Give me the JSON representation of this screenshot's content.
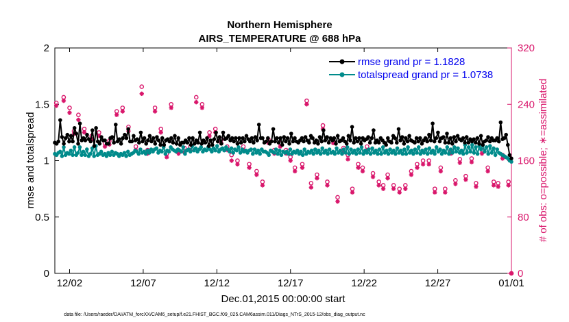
{
  "chart_data": {
    "type": "line",
    "title_line1": "Northern Hemisphere",
    "title_line2": "AIRS_TEMPERATURE @ 688 hPa",
    "xlabel": "Dec.01,2015 00:00:00 start",
    "ylabel_left": "rmse and totalspread",
    "ylabel_right": "# of obs: o=possible; ∗=assimilated",
    "xlim": [
      0,
      31
    ],
    "ylim_left": [
      0,
      2
    ],
    "ylim_right": [
      0,
      320
    ],
    "x_ticks": [
      {
        "value": 1,
        "label": "12/02"
      },
      {
        "value": 6,
        "label": "12/07"
      },
      {
        "value": 11,
        "label": "12/12"
      },
      {
        "value": 16,
        "label": "12/17"
      },
      {
        "value": 21,
        "label": "12/22"
      },
      {
        "value": 26,
        "label": "12/27"
      },
      {
        "value": 31,
        "label": "01/01"
      }
    ],
    "y_ticks_left": [
      "0",
      "0.5",
      "1",
      "1.5",
      "2"
    ],
    "y_ticks_right": [
      "0",
      "80",
      "160",
      "240",
      "320"
    ],
    "colors": {
      "rmse": "#000000",
      "spread": "#008b8b",
      "obs": "#d9166b",
      "right_axis": "#d9166b",
      "legend_text": "#0000ee"
    },
    "legend": [
      {
        "label": "rmse grand pr = 1.1828",
        "color": "#000000"
      },
      {
        "label": "totalspread grand pr = 1.0738",
        "color": "#008b8b"
      }
    ],
    "series": [
      {
        "name": "rmse",
        "axis": "left",
        "values": [
          1.16,
          1.15,
          1.17,
          1.36,
          1.21,
          1.15,
          1.2,
          1.23,
          1.17,
          1.22,
          1.17,
          1.29,
          1.24,
          1.15,
          1.33,
          1.18,
          1.2,
          1.18,
          1.23,
          1.19,
          1.17,
          1.27,
          1.13,
          1.29,
          1.17,
          1.15,
          1.21,
          1.18,
          1.18,
          1.15,
          1.15,
          1.2,
          1.21,
          1.16,
          1.32,
          1.17,
          1.19,
          1.15,
          1.2,
          1.23,
          1.2,
          1.28,
          1.17,
          1.17,
          1.22,
          1.18,
          1.19,
          1.16,
          1.25,
          1.17,
          1.2,
          1.15,
          1.18,
          1.22,
          1.17,
          1.2,
          1.15,
          1.21,
          1.18,
          1.14,
          1.2,
          1.14,
          1.18,
          1.19,
          1.17,
          1.2,
          1.16,
          1.22,
          1.15,
          1.2,
          1.14,
          1.16,
          1.16,
          1.18,
          1.16,
          1.2,
          1.14,
          1.2,
          1.15,
          1.18,
          1.16,
          1.25,
          1.15,
          1.18,
          1.16,
          1.2,
          1.13,
          1.18,
          1.14,
          1.19,
          1.25,
          1.17,
          1.21,
          1.15,
          1.25,
          1.19,
          1.2,
          1.22,
          1.18,
          1.2,
          1.17,
          1.2,
          1.15,
          1.2,
          1.16,
          1.2,
          1.17,
          1.22,
          1.19,
          1.17,
          1.2,
          1.16,
          1.21,
          1.18,
          1.32,
          1.2,
          1.2,
          1.16,
          1.17,
          1.2,
          1.15,
          1.17,
          1.28,
          1.17,
          1.2,
          1.16,
          1.2,
          1.14,
          1.21,
          1.17,
          1.2,
          1.15,
          1.24,
          1.17,
          1.2,
          1.17,
          1.16,
          1.18,
          1.2,
          1.17,
          1.21,
          1.18,
          1.16,
          1.22,
          1.2,
          1.16,
          1.18,
          1.15,
          1.21,
          1.17,
          1.27,
          1.18,
          1.21,
          1.16,
          1.2,
          1.18,
          1.2,
          1.15,
          1.22,
          1.17,
          1.18,
          1.2,
          1.17,
          1.15,
          1.22,
          1.18,
          1.3,
          1.16,
          1.2,
          1.17,
          1.2,
          1.15,
          1.2,
          1.18,
          1.19,
          1.21,
          1.16,
          1.2,
          1.27,
          1.16,
          1.18,
          1.16,
          1.2,
          1.18,
          1.16,
          1.14,
          1.2,
          1.17,
          1.16,
          1.22,
          1.2,
          1.16,
          1.28,
          1.18,
          1.21,
          1.15,
          1.2,
          1.17,
          1.22,
          1.18,
          1.17,
          1.16,
          1.2,
          1.17,
          1.2,
          1.15,
          1.18,
          1.2,
          1.17,
          1.23,
          1.18,
          1.33,
          1.17,
          1.2,
          1.25,
          1.17,
          1.2,
          1.21,
          1.16,
          1.24,
          1.16,
          1.2,
          1.15,
          1.21,
          1.17,
          1.22,
          1.19,
          1.18,
          1.2,
          1.16,
          1.21,
          1.16,
          1.19,
          1.17,
          1.19,
          1.16,
          1.2,
          1.15,
          1.22,
          1.14,
          1.17,
          1.18,
          1.21,
          1.17,
          1.2,
          1.18,
          1.18,
          1.2,
          1.17,
          1.34,
          1.19,
          1.2,
          1.23,
          1.14,
          1.05,
          1.02
        ]
      },
      {
        "name": "totalspread",
        "axis": "left",
        "values": [
          1.06,
          1.05,
          1.07,
          1.08,
          1.04,
          1.12,
          1.05,
          1.07,
          1.06,
          1.09,
          1.05,
          1.12,
          1.05,
          1.07,
          1.12,
          1.05,
          1.08,
          1.05,
          1.1,
          1.04,
          1.06,
          1.11,
          1.04,
          1.13,
          1.05,
          1.06,
          1.08,
          1.05,
          1.06,
          1.04,
          1.07,
          1.05,
          1.08,
          1.05,
          1.07,
          1.06,
          1.04,
          1.06,
          1.05,
          1.07,
          1.04,
          1.08,
          1.05,
          1.06,
          1.07,
          1.09,
          1.08,
          1.06,
          1.1,
          1.07,
          1.08,
          1.06,
          1.09,
          1.07,
          1.1,
          1.08,
          1.1,
          1.11,
          1.07,
          1.09,
          1.08,
          1.12,
          1.06,
          1.09,
          1.08,
          1.12,
          1.1,
          1.09,
          1.08,
          1.1,
          1.09,
          1.08,
          1.12,
          1.06,
          1.09,
          1.1,
          1.08,
          1.13,
          1.09,
          1.11,
          1.08,
          1.1,
          1.12,
          1.08,
          1.1,
          1.09,
          1.12,
          1.1,
          1.08,
          1.11,
          1.09,
          1.13,
          1.08,
          1.1,
          1.11,
          1.09,
          1.12,
          1.1,
          1.08,
          1.11,
          1.07,
          1.1,
          1.09,
          1.12,
          1.07,
          1.1,
          1.08,
          1.09,
          1.07,
          1.09,
          1.1,
          1.06,
          1.1,
          1.07,
          1.09,
          1.06,
          1.1,
          1.08,
          1.08,
          1.07,
          1.05,
          1.09,
          1.08,
          1.07,
          1.1,
          1.06,
          1.09,
          1.05,
          1.08,
          1.07,
          1.08,
          1.06,
          1.1,
          1.06,
          1.08,
          1.07,
          1.09,
          1.06,
          1.08,
          1.05,
          1.1,
          1.06,
          1.08,
          1.07,
          1.09,
          1.06,
          1.1,
          1.07,
          1.09,
          1.06,
          1.11,
          1.07,
          1.09,
          1.06,
          1.1,
          1.07,
          1.08,
          1.06,
          1.11,
          1.07,
          1.09,
          1.06,
          1.1,
          1.07,
          1.12,
          1.06,
          1.1,
          1.07,
          1.09,
          1.06,
          1.1,
          1.07,
          1.12,
          1.06,
          1.09,
          1.07,
          1.1,
          1.06,
          1.11,
          1.07,
          1.09,
          1.06,
          1.1,
          1.06,
          1.12,
          1.07,
          1.09,
          1.06,
          1.1,
          1.07,
          1.09,
          1.06,
          1.11,
          1.07,
          1.09,
          1.06,
          1.1,
          1.06,
          1.12,
          1.07,
          1.09,
          1.06,
          1.1,
          1.07,
          1.12,
          1.06,
          1.09,
          1.07,
          1.1,
          1.06,
          1.11,
          1.07,
          1.09,
          1.06,
          1.12,
          1.08,
          1.1,
          1.06,
          1.09,
          1.07,
          1.12,
          1.06,
          1.1,
          1.07,
          1.12,
          1.08,
          1.11,
          1.07,
          1.09,
          1.06,
          1.14,
          1.07,
          1.12,
          1.08,
          1.14,
          1.07,
          1.12,
          1.06,
          1.13,
          1.1,
          1.14,
          1.08,
          1.12,
          1.06,
          1.13,
          1.07,
          1.11,
          1.05,
          1.1,
          1.07,
          1.06,
          1.05,
          1.04,
          1.03,
          1.02,
          1.0,
          0.99
        ]
      },
      {
        "name": "obs_possible",
        "axis": "right",
        "marker": "o",
        "values": [
          [
            0.1,
            242
          ],
          [
            0.6,
            250
          ],
          [
            1.0,
            235
          ],
          [
            1.3,
            202
          ],
          [
            1.6,
            225
          ],
          [
            2.0,
            205
          ],
          [
            2.5,
            195
          ],
          [
            3.0,
            200
          ],
          [
            3.4,
            185
          ],
          [
            3.7,
            188
          ],
          [
            4.2,
            230
          ],
          [
            4.6,
            235
          ],
          [
            5.0,
            208
          ],
          [
            5.5,
            180
          ],
          [
            5.9,
            265
          ],
          [
            6.3,
            175
          ],
          [
            6.8,
            235
          ],
          [
            7.2,
            205
          ],
          [
            7.6,
            170
          ],
          [
            7.9,
            240
          ],
          [
            8.4,
            175
          ],
          [
            8.8,
            178
          ],
          [
            9.2,
            180
          ],
          [
            9.6,
            250
          ],
          [
            10.0,
            240
          ],
          [
            10.5,
            200
          ],
          [
            10.9,
            205
          ],
          [
            11.3,
            190
          ],
          [
            11.7,
            180
          ],
          [
            12.0,
            168
          ],
          [
            12.4,
            160
          ],
          [
            12.8,
            180
          ],
          [
            13.2,
            155
          ],
          [
            13.7,
            145
          ],
          [
            14.1,
            130
          ],
          [
            14.5,
            190
          ],
          [
            14.9,
            175
          ],
          [
            15.3,
            185
          ],
          [
            15.7,
            175
          ],
          [
            16.0,
            165
          ],
          [
            16.3,
            150
          ],
          [
            16.8,
            155
          ],
          [
            17.1,
            245
          ],
          [
            17.4,
            128
          ],
          [
            17.8,
            140
          ],
          [
            18.2,
            210
          ],
          [
            18.5,
            130
          ],
          [
            18.9,
            190
          ],
          [
            19.2,
            108
          ],
          [
            19.6,
            178
          ],
          [
            19.9,
            168
          ],
          [
            20.2,
            120
          ],
          [
            20.6,
            155
          ],
          [
            20.9,
            150
          ],
          [
            21.2,
            180
          ],
          [
            21.6,
            142
          ],
          [
            22.0,
            130
          ],
          [
            22.3,
            125
          ],
          [
            22.6,
            140
          ],
          [
            23.0,
            125
          ],
          [
            23.4,
            120
          ],
          [
            23.8,
            125
          ],
          [
            24.2,
            145
          ],
          [
            24.6,
            155
          ],
          [
            25.0,
            160
          ],
          [
            25.4,
            160
          ],
          [
            25.8,
            120
          ],
          [
            26.2,
            150
          ],
          [
            26.5,
            120
          ],
          [
            26.9,
            175
          ],
          [
            27.2,
            132
          ],
          [
            27.5,
            162
          ],
          [
            27.9,
            138
          ],
          [
            28.3,
            163
          ],
          [
            28.6,
            128
          ],
          [
            29.0,
            175
          ],
          [
            29.4,
            150
          ],
          [
            29.8,
            130
          ],
          [
            30.1,
            128
          ],
          [
            30.4,
            168
          ],
          [
            30.8,
            130
          ],
          [
            31.0,
            0
          ]
        ]
      },
      {
        "name": "obs_assimilated",
        "axis": "right",
        "marker": "*",
        "values": [
          [
            0.1,
            238
          ],
          [
            0.6,
            245
          ],
          [
            1.0,
            228
          ],
          [
            1.3,
            198
          ],
          [
            1.6,
            218
          ],
          [
            2.0,
            200
          ],
          [
            2.5,
            190
          ],
          [
            3.0,
            195
          ],
          [
            3.4,
            180
          ],
          [
            3.7,
            183
          ],
          [
            4.2,
            225
          ],
          [
            4.6,
            230
          ],
          [
            5.0,
            202
          ],
          [
            5.5,
            175
          ],
          [
            5.9,
            255
          ],
          [
            6.3,
            170
          ],
          [
            6.8,
            230
          ],
          [
            7.2,
            200
          ],
          [
            7.6,
            165
          ],
          [
            7.9,
            235
          ],
          [
            8.4,
            170
          ],
          [
            8.8,
            172
          ],
          [
            9.2,
            175
          ],
          [
            9.6,
            243
          ],
          [
            10.0,
            235
          ],
          [
            10.5,
            195
          ],
          [
            10.9,
            200
          ],
          [
            11.3,
            185
          ],
          [
            11.7,
            175
          ],
          [
            12.0,
            160
          ],
          [
            12.4,
            155
          ],
          [
            12.8,
            175
          ],
          [
            13.2,
            150
          ],
          [
            13.7,
            140
          ],
          [
            14.1,
            125
          ],
          [
            14.5,
            185
          ],
          [
            14.9,
            170
          ],
          [
            15.3,
            180
          ],
          [
            15.7,
            170
          ],
          [
            16.0,
            160
          ],
          [
            16.3,
            145
          ],
          [
            16.8,
            150
          ],
          [
            17.1,
            240
          ],
          [
            17.4,
            122
          ],
          [
            17.8,
            135
          ],
          [
            18.2,
            205
          ],
          [
            18.5,
            125
          ],
          [
            18.9,
            185
          ],
          [
            19.2,
            102
          ],
          [
            19.6,
            172
          ],
          [
            19.9,
            162
          ],
          [
            20.2,
            115
          ],
          [
            20.6,
            150
          ],
          [
            20.9,
            145
          ],
          [
            21.2,
            175
          ],
          [
            21.6,
            137
          ],
          [
            22.0,
            125
          ],
          [
            22.3,
            120
          ],
          [
            22.6,
            135
          ],
          [
            23.0,
            120
          ],
          [
            23.4,
            115
          ],
          [
            23.8,
            120
          ],
          [
            24.2,
            140
          ],
          [
            24.6,
            150
          ],
          [
            25.0,
            155
          ],
          [
            25.4,
            155
          ],
          [
            25.8,
            115
          ],
          [
            26.2,
            145
          ],
          [
            26.5,
            115
          ],
          [
            26.9,
            170
          ],
          [
            27.2,
            127
          ],
          [
            27.5,
            157
          ],
          [
            27.9,
            133
          ],
          [
            28.3,
            158
          ],
          [
            28.6,
            123
          ],
          [
            29.0,
            170
          ],
          [
            29.4,
            145
          ],
          [
            29.8,
            125
          ],
          [
            30.1,
            123
          ],
          [
            30.4,
            163
          ],
          [
            30.8,
            125
          ],
          [
            31.0,
            0
          ]
        ]
      }
    ],
    "footnote": "data file: /Users/raeder/DAI/ATM_forcXX/CAM6_setup/f.e21.FHIST_BGC.f09_025.CAM6assim.011/Diags_NTrS_2015-12/obs_diag_output.nc"
  }
}
